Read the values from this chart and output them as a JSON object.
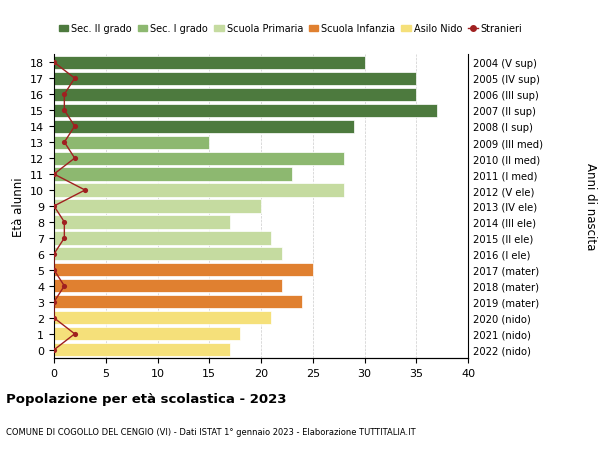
{
  "ages": [
    0,
    1,
    2,
    3,
    4,
    5,
    6,
    7,
    8,
    9,
    10,
    11,
    12,
    13,
    14,
    15,
    16,
    17,
    18
  ],
  "bar_values": [
    17,
    18,
    21,
    24,
    22,
    25,
    22,
    21,
    17,
    20,
    28,
    23,
    28,
    15,
    29,
    37,
    35,
    35,
    30
  ],
  "stranieri": [
    0,
    2,
    0,
    0,
    1,
    0,
    0,
    1,
    1,
    0,
    3,
    0,
    2,
    1,
    2,
    1,
    1,
    2,
    0
  ],
  "right_labels": [
    "2022 (nido)",
    "2021 (nido)",
    "2020 (nido)",
    "2019 (mater)",
    "2018 (mater)",
    "2017 (mater)",
    "2016 (I ele)",
    "2015 (II ele)",
    "2014 (III ele)",
    "2013 (IV ele)",
    "2012 (V ele)",
    "2011 (I med)",
    "2010 (II med)",
    "2009 (III med)",
    "2008 (I sup)",
    "2007 (II sup)",
    "2006 (III sup)",
    "2005 (IV sup)",
    "2004 (V sup)"
  ],
  "bar_colors": [
    "#f5e07a",
    "#f5e07a",
    "#f5e07a",
    "#e08030",
    "#e08030",
    "#e08030",
    "#c5dba0",
    "#c5dba0",
    "#c5dba0",
    "#c5dba0",
    "#c5dba0",
    "#8db870",
    "#8db870",
    "#8db870",
    "#4d7a3e",
    "#4d7a3e",
    "#4d7a3e",
    "#4d7a3e",
    "#4d7a3e"
  ],
  "legend_labels": [
    "Sec. II grado",
    "Sec. I grado",
    "Scuola Primaria",
    "Scuola Infanzia",
    "Asilo Nido",
    "Stranieri"
  ],
  "legend_colors": [
    "#4d7a3e",
    "#8db870",
    "#c5dba0",
    "#e08030",
    "#f5e07a",
    "#a02020"
  ],
  "stranieri_color": "#a02020",
  "title": "Popolazione per età scolastica - 2023",
  "subtitle": "COMUNE DI COGOLLO DEL CENGIO (VI) - Dati ISTAT 1° gennaio 2023 - Elaborazione TUTTITALIA.IT",
  "xlabel_right": "Anni di nascita",
  "ylabel_left": "Età alunni",
  "xlim": [
    0,
    40
  ],
  "xticks": [
    0,
    5,
    10,
    15,
    20,
    25,
    30,
    35,
    40
  ],
  "background_color": "#ffffff",
  "grid_color": "#cccccc"
}
